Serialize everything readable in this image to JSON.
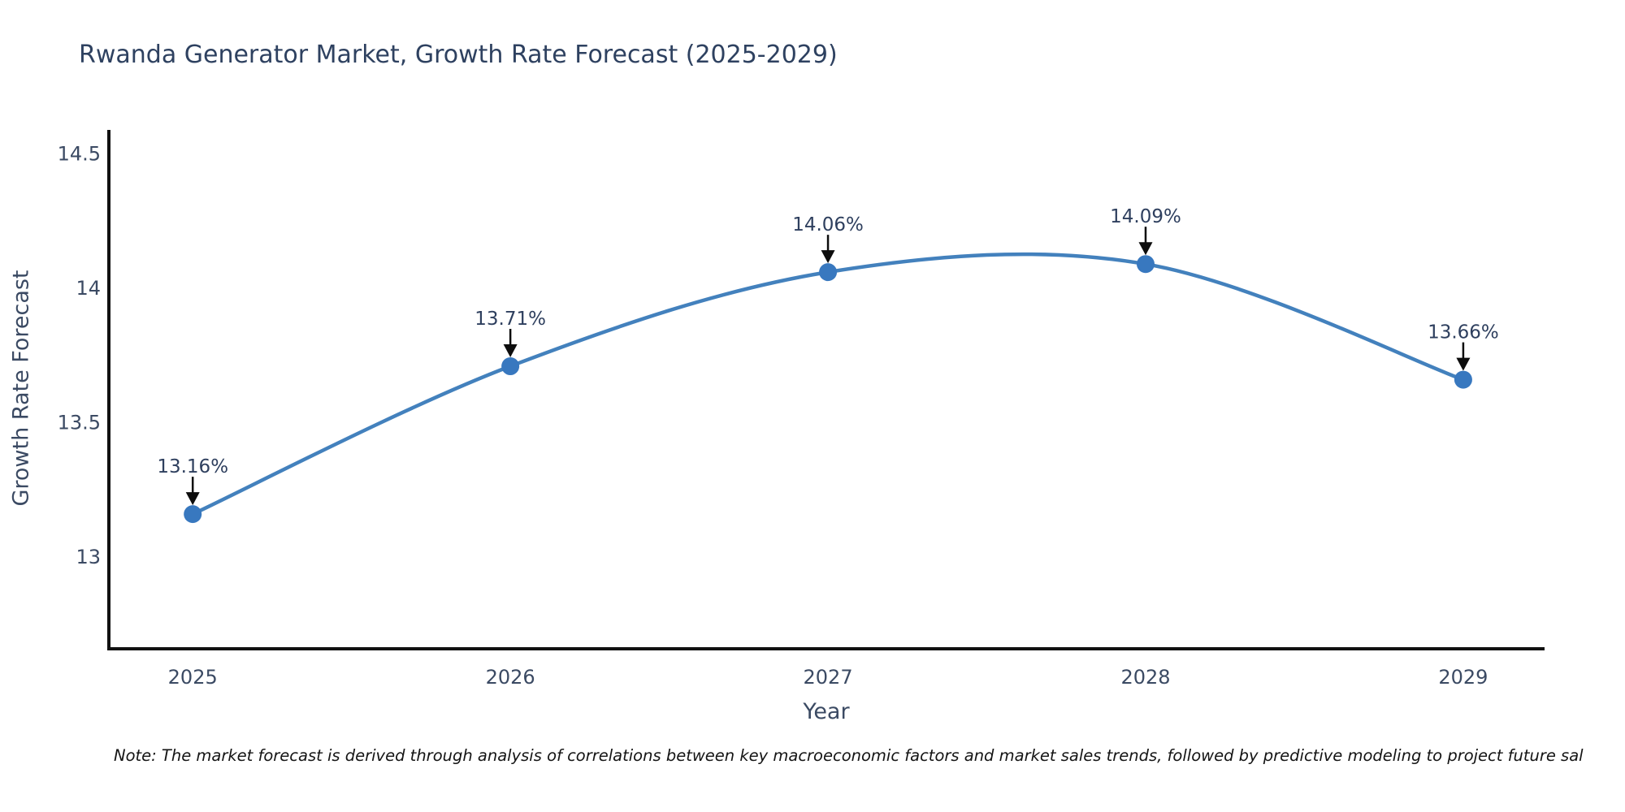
{
  "page": {
    "background": "#ffffff"
  },
  "note": "Note: The market forecast is derived through analysis of correlations between key macroeconomic factors and market sales trends, followed by predictive modeling to project future sal",
  "chart_data": {
    "type": "line",
    "title": "Rwanda Generator Market, Growth Rate Forecast (2025-2029)",
    "xlabel": "Year",
    "ylabel": "Growth Rate Forecast",
    "x": [
      2025,
      2026,
      2027,
      2028,
      2029
    ],
    "xtick_labels": [
      "2025",
      "2026",
      "2027",
      "2028",
      "2029"
    ],
    "series": [
      {
        "name": "Growth Rate Forecast",
        "values": [
          13.16,
          13.71,
          14.06,
          14.09,
          13.66
        ],
        "point_labels": [
          "13.16%",
          "13.71%",
          "14.06%",
          "14.09%",
          "13.66%"
        ]
      }
    ],
    "yticks": [
      13,
      13.5,
      14,
      14.5
    ],
    "ytick_labels": [
      "13",
      "13.5",
      "14",
      "14.5"
    ],
    "xlim": [
      2024.736,
      2029.256
    ],
    "ylim": [
      12.659,
      14.589
    ],
    "grid": false,
    "legend": "none",
    "line_shape": "spline",
    "annotation_style": "value-label-with-down-arrow",
    "colors": {
      "line": "#4381bd",
      "marker": "#3878bf",
      "axis": "#111111",
      "tick_text": "#3b4a63",
      "annotation_text": "#2e3f5e",
      "arrow": "#0d0d0d"
    }
  }
}
